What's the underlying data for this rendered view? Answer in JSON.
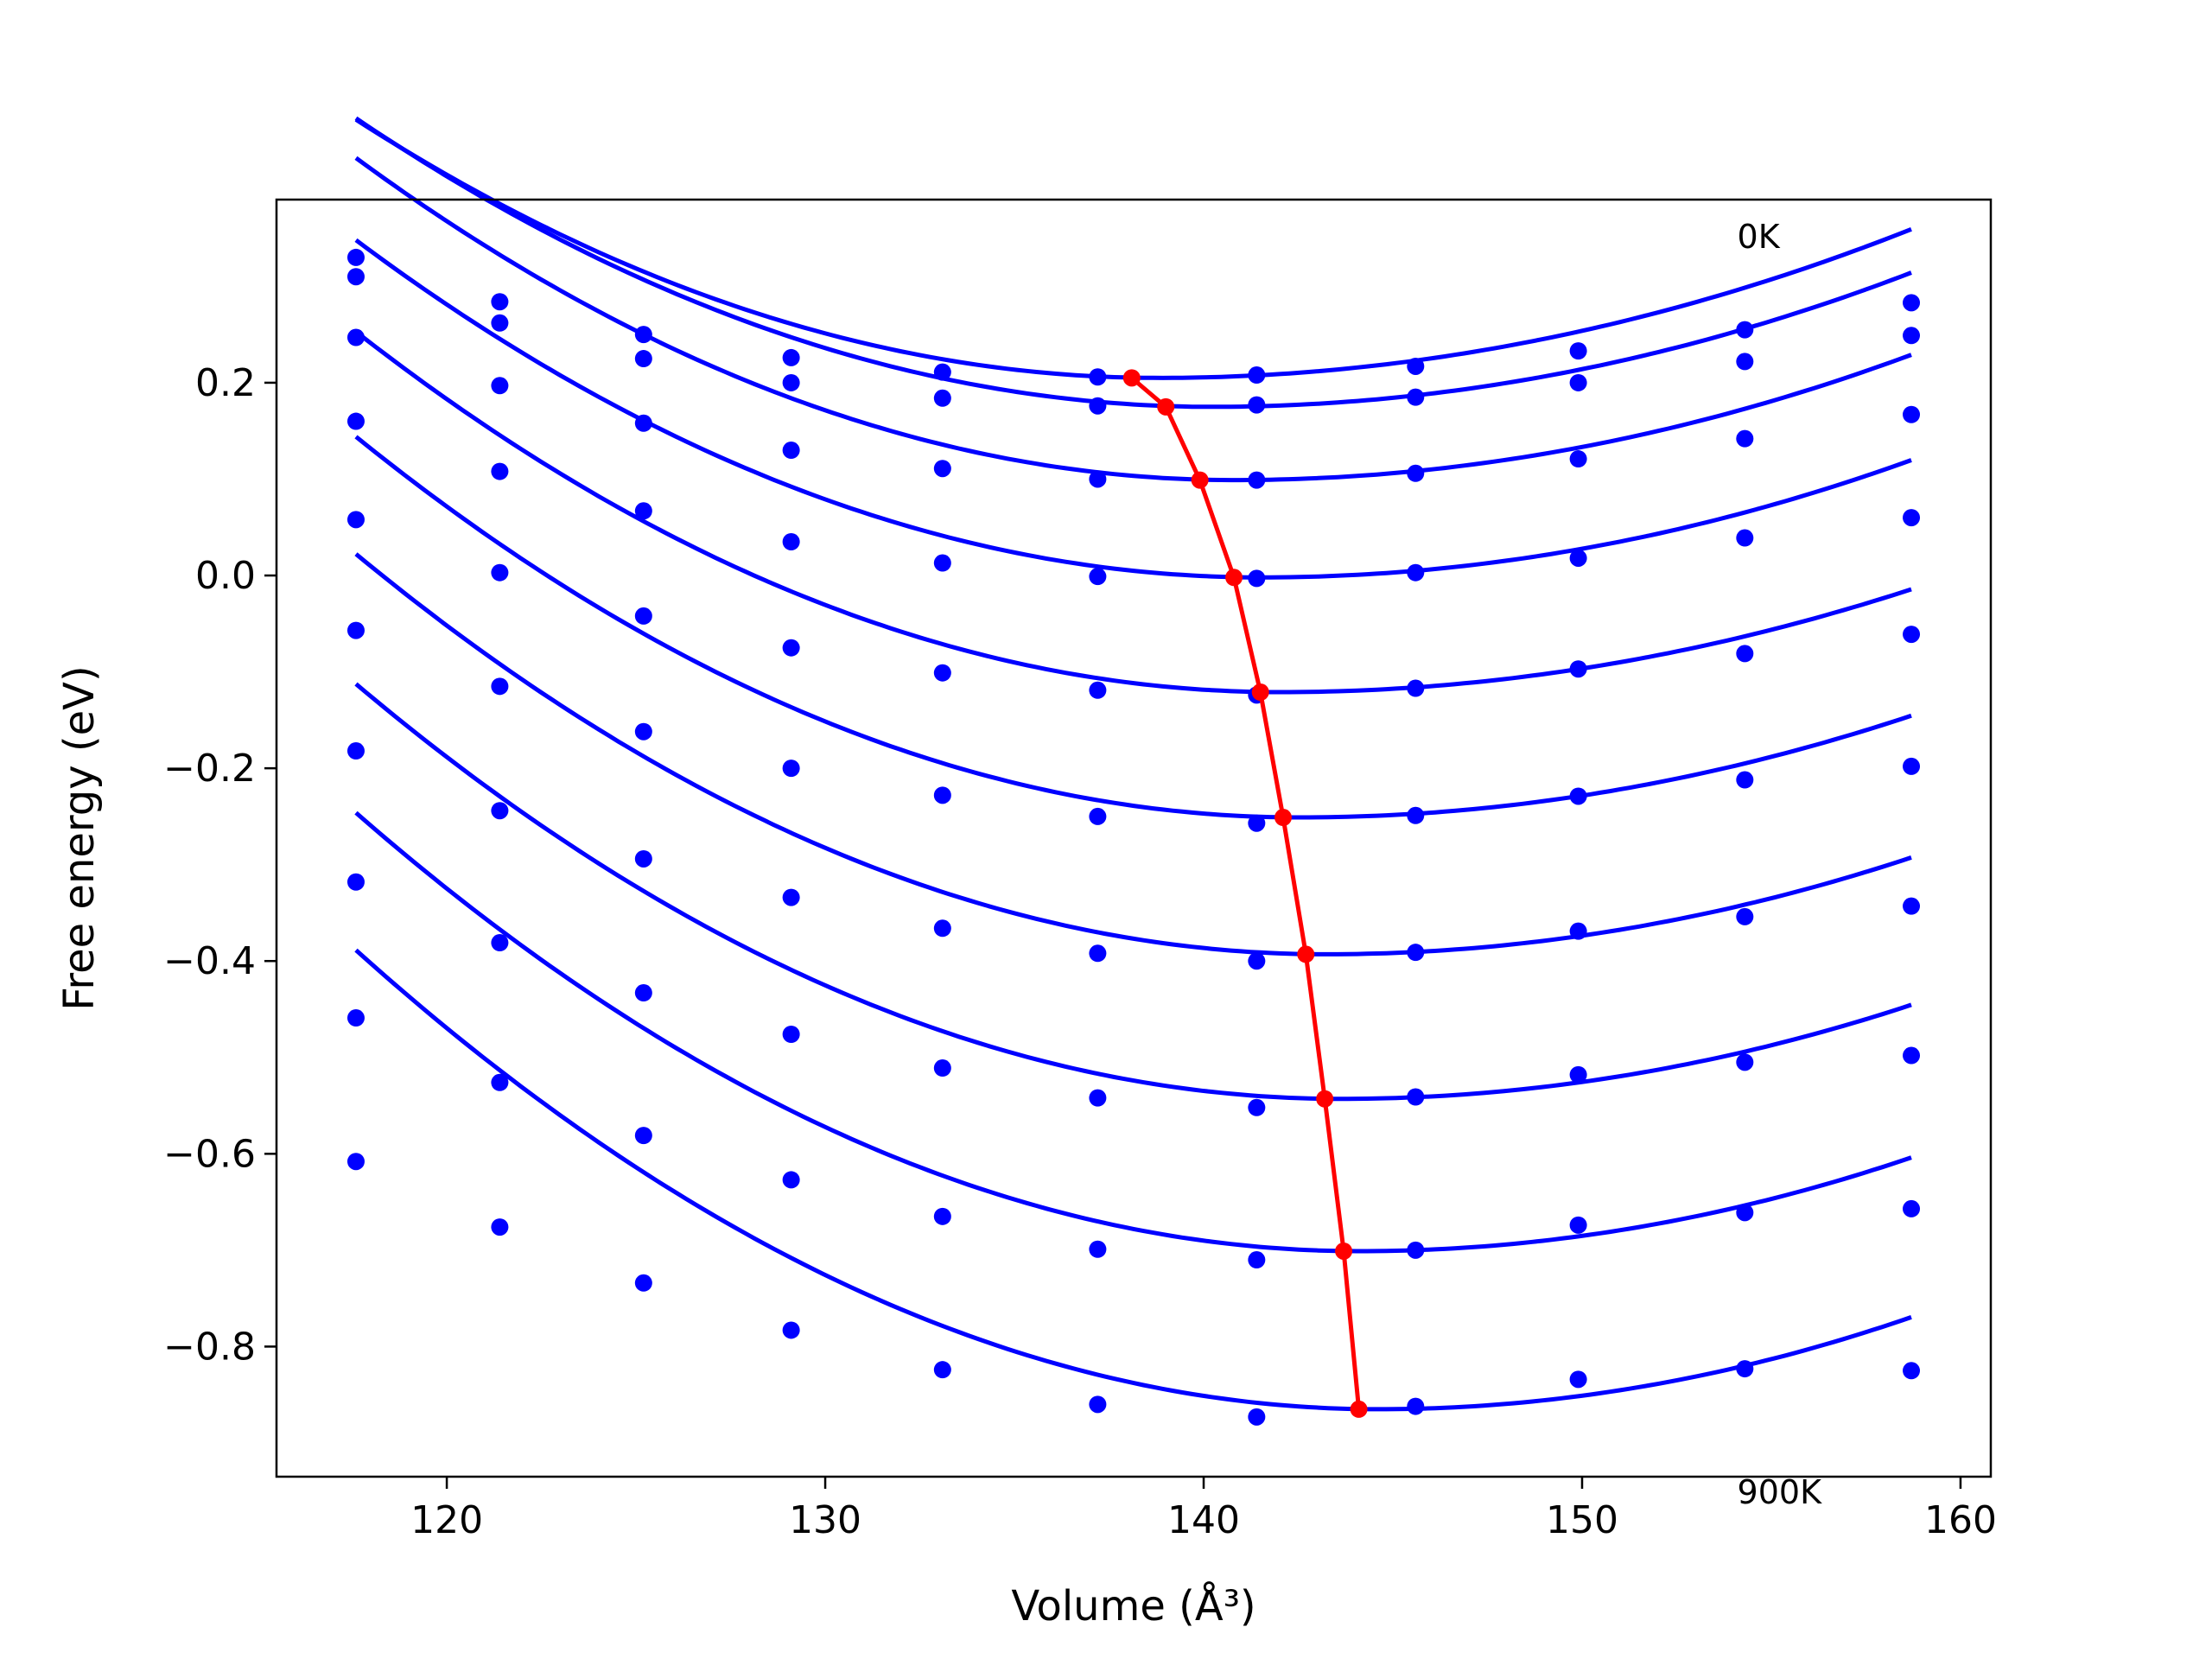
{
  "chart_data": {
    "type": "line",
    "xlabel": "Volume (Å³)",
    "ylabel": "Free energy (eV)",
    "xlim": [
      115.5,
      160.8
    ],
    "ylim": [
      -0.935,
      0.39
    ],
    "xticks": [
      120,
      130,
      140,
      150,
      160
    ],
    "yticks": [
      0.2,
      0.0,
      -0.2,
      -0.4,
      -0.6,
      -0.8
    ],
    "ytick_labels": [
      "0.2",
      "0.0",
      "−0.2",
      "−0.4",
      "−0.6",
      "−0.8"
    ],
    "grid": false,
    "legend": "none",
    "annotations": [
      {
        "text": "0K",
        "x": 154.1,
        "y": 0.34
      },
      {
        "text": "900K",
        "x": 154.1,
        "y": -0.963
      }
    ],
    "colors": {
      "data": "#0000ff",
      "minimum_path": "#ff0000"
    },
    "volumes": [
      117.6,
      121.4,
      125.2,
      129.1,
      133.1,
      137.2,
      141.4,
      145.6,
      149.9,
      154.3,
      158.7
    ],
    "series": [
      {
        "energies": [
          0.33,
          0.284,
          0.25,
          0.226,
          0.211,
          0.206,
          0.208,
          0.217,
          0.233,
          0.255,
          0.283
        ]
      },
      {
        "energies": [
          0.31,
          0.262,
          0.225,
          0.2,
          0.184,
          0.176,
          0.177,
          0.185,
          0.2,
          0.222,
          0.249
        ]
      },
      {
        "energies": [
          0.247,
          0.197,
          0.158,
          0.13,
          0.111,
          0.1,
          0.099,
          0.106,
          0.121,
          0.142,
          0.167
        ]
      },
      {
        "energies": [
          0.16,
          0.108,
          0.067,
          0.035,
          0.013,
          -0.001,
          -0.003,
          0.003,
          0.018,
          0.039,
          0.06
        ]
      },
      {
        "energies": [
          0.058,
          0.003,
          -0.042,
          -0.075,
          -0.101,
          -0.119,
          -0.124,
          -0.117,
          -0.097,
          -0.081,
          -0.061
        ]
      },
      {
        "energies": [
          -0.057,
          -0.115,
          -0.162,
          -0.2,
          -0.228,
          -0.25,
          -0.257,
          -0.249,
          -0.229,
          -0.212,
          -0.198
        ]
      },
      {
        "energies": [
          -0.182,
          -0.244,
          -0.294,
          -0.334,
          -0.366,
          -0.392,
          -0.4,
          -0.391,
          -0.369,
          -0.354,
          -0.343
        ]
      },
      {
        "energies": [
          -0.318,
          -0.381,
          -0.433,
          -0.476,
          -0.511,
          -0.542,
          -0.552,
          -0.541,
          -0.518,
          -0.505,
          -0.498
        ]
      },
      {
        "energies": [
          -0.459,
          -0.526,
          -0.581,
          -0.627,
          -0.665,
          -0.699,
          -0.71,
          -0.7,
          -0.674,
          -0.661,
          -0.657
        ]
      },
      {
        "energies": [
          -0.608,
          -0.676,
          -0.734,
          -0.783,
          -0.824,
          -0.86,
          -0.873,
          -0.862,
          -0.834,
          -0.823,
          -0.825
        ]
      }
    ],
    "fits": [
      {
        "vmin": 138.8,
        "emin": 0.205,
        "a_left": 0.0005964,
        "a_right": 0.0003895
      },
      {
        "vmin": 140.2,
        "emin": 0.175,
        "a_left": 0.0005862,
        "a_right": 0.0004069
      },
      {
        "vmin": 140.8,
        "emin": 0.099,
        "a_left": 0.0006209,
        "a_right": 0.0004058
      },
      {
        "vmin": 141.5,
        "emin": -0.002,
        "a_left": 0.0006126,
        "a_right": 0.0004115
      },
      {
        "vmin": 142.0,
        "emin": -0.121,
        "a_left": 0.0006281,
        "a_right": 0.0003827
      },
      {
        "vmin": 142.5,
        "emin": -0.251,
        "a_left": 0.0006371,
        "a_right": 0.0004023
      },
      {
        "vmin": 143.2,
        "emin": -0.393,
        "a_left": 0.0006337,
        "a_right": 0.0004178
      },
      {
        "vmin": 143.6,
        "emin": -0.543,
        "a_left": 0.0006368,
        "a_right": 0.0004278
      },
      {
        "vmin": 144.1,
        "emin": -0.701,
        "a_left": 0.0006477,
        "a_right": 0.0004557
      },
      {
        "vmin": 144.6,
        "emin": -0.865,
        "a_left": 0.0006534,
        "a_right": 0.0004805
      }
    ],
    "minimum_path": {
      "x": [
        138.1,
        139.0,
        139.9,
        140.8,
        141.5,
        142.1,
        142.7,
        143.2,
        143.7,
        144.1
      ],
      "y": [
        0.205,
        0.175,
        0.099,
        -0.002,
        -0.121,
        -0.251,
        -0.393,
        -0.543,
        -0.701,
        -0.865
      ]
    }
  }
}
